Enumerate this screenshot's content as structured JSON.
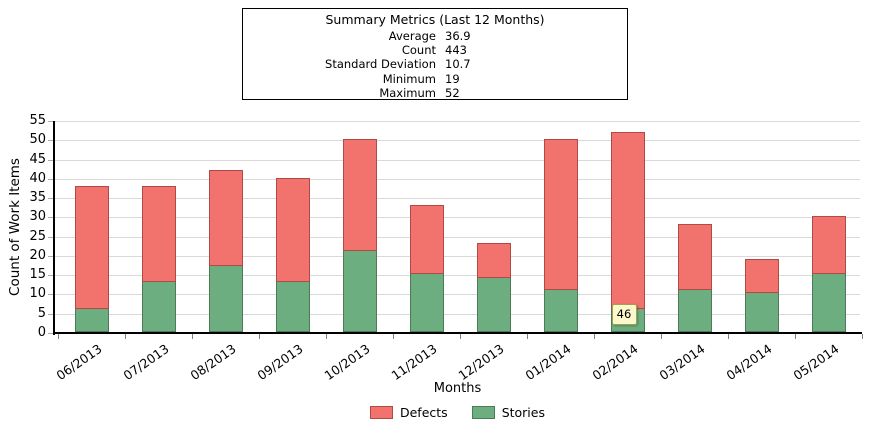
{
  "summary": {
    "title": "Summary Metrics (Last 12 Months)",
    "rows": [
      {
        "label": "Average",
        "value": "36.9"
      },
      {
        "label": "Count",
        "value": "443"
      },
      {
        "label": "Standard Deviation",
        "value": "10.7"
      },
      {
        "label": "Minimum",
        "value": "19"
      },
      {
        "label": "Maximum",
        "value": "52"
      }
    ]
  },
  "chart_data": {
    "type": "bar",
    "stacked": true,
    "categories": [
      "06/2013",
      "07/2013",
      "08/2013",
      "09/2013",
      "10/2013",
      "11/2013",
      "12/2013",
      "01/2014",
      "02/2014",
      "03/2014",
      "04/2014",
      "05/2014"
    ],
    "series": [
      {
        "name": "Stories",
        "color": "#6dae80",
        "border": "#4d7b57",
        "values": [
          6,
          13,
          17,
          13,
          21,
          15,
          14,
          11,
          6,
          11,
          10,
          15
        ]
      },
      {
        "name": "Defects",
        "color": "#f2726d",
        "border": "#b14a44",
        "values": [
          32,
          25,
          25,
          27,
          29,
          18,
          9,
          39,
          46,
          17,
          9,
          15
        ]
      }
    ],
    "totals": [
      38,
      38,
      42,
      40,
      50,
      33,
      23,
      50,
      52,
      28,
      19,
      30
    ],
    "xlabel": "Months",
    "ylabel": "Count of Work Items",
    "ylim": [
      0,
      55
    ],
    "ytick_step": 5,
    "grid": "horizontal",
    "legend_position": "bottom",
    "legend_order": [
      "Defects",
      "Stories"
    ],
    "tooltip": {
      "text": "46",
      "category": "02/2014",
      "series": "Defects"
    }
  },
  "colors": {
    "background": "#ffffff",
    "gridline": "#d9d9d9",
    "axis": "#000000",
    "tooltip_bg": "#fbf8cc",
    "tooltip_border": "#a0a04e",
    "defects_fill": "#f2726d",
    "defects_border": "#b14a44",
    "stories_fill": "#6dae80",
    "stories_border": "#4d7b57"
  }
}
